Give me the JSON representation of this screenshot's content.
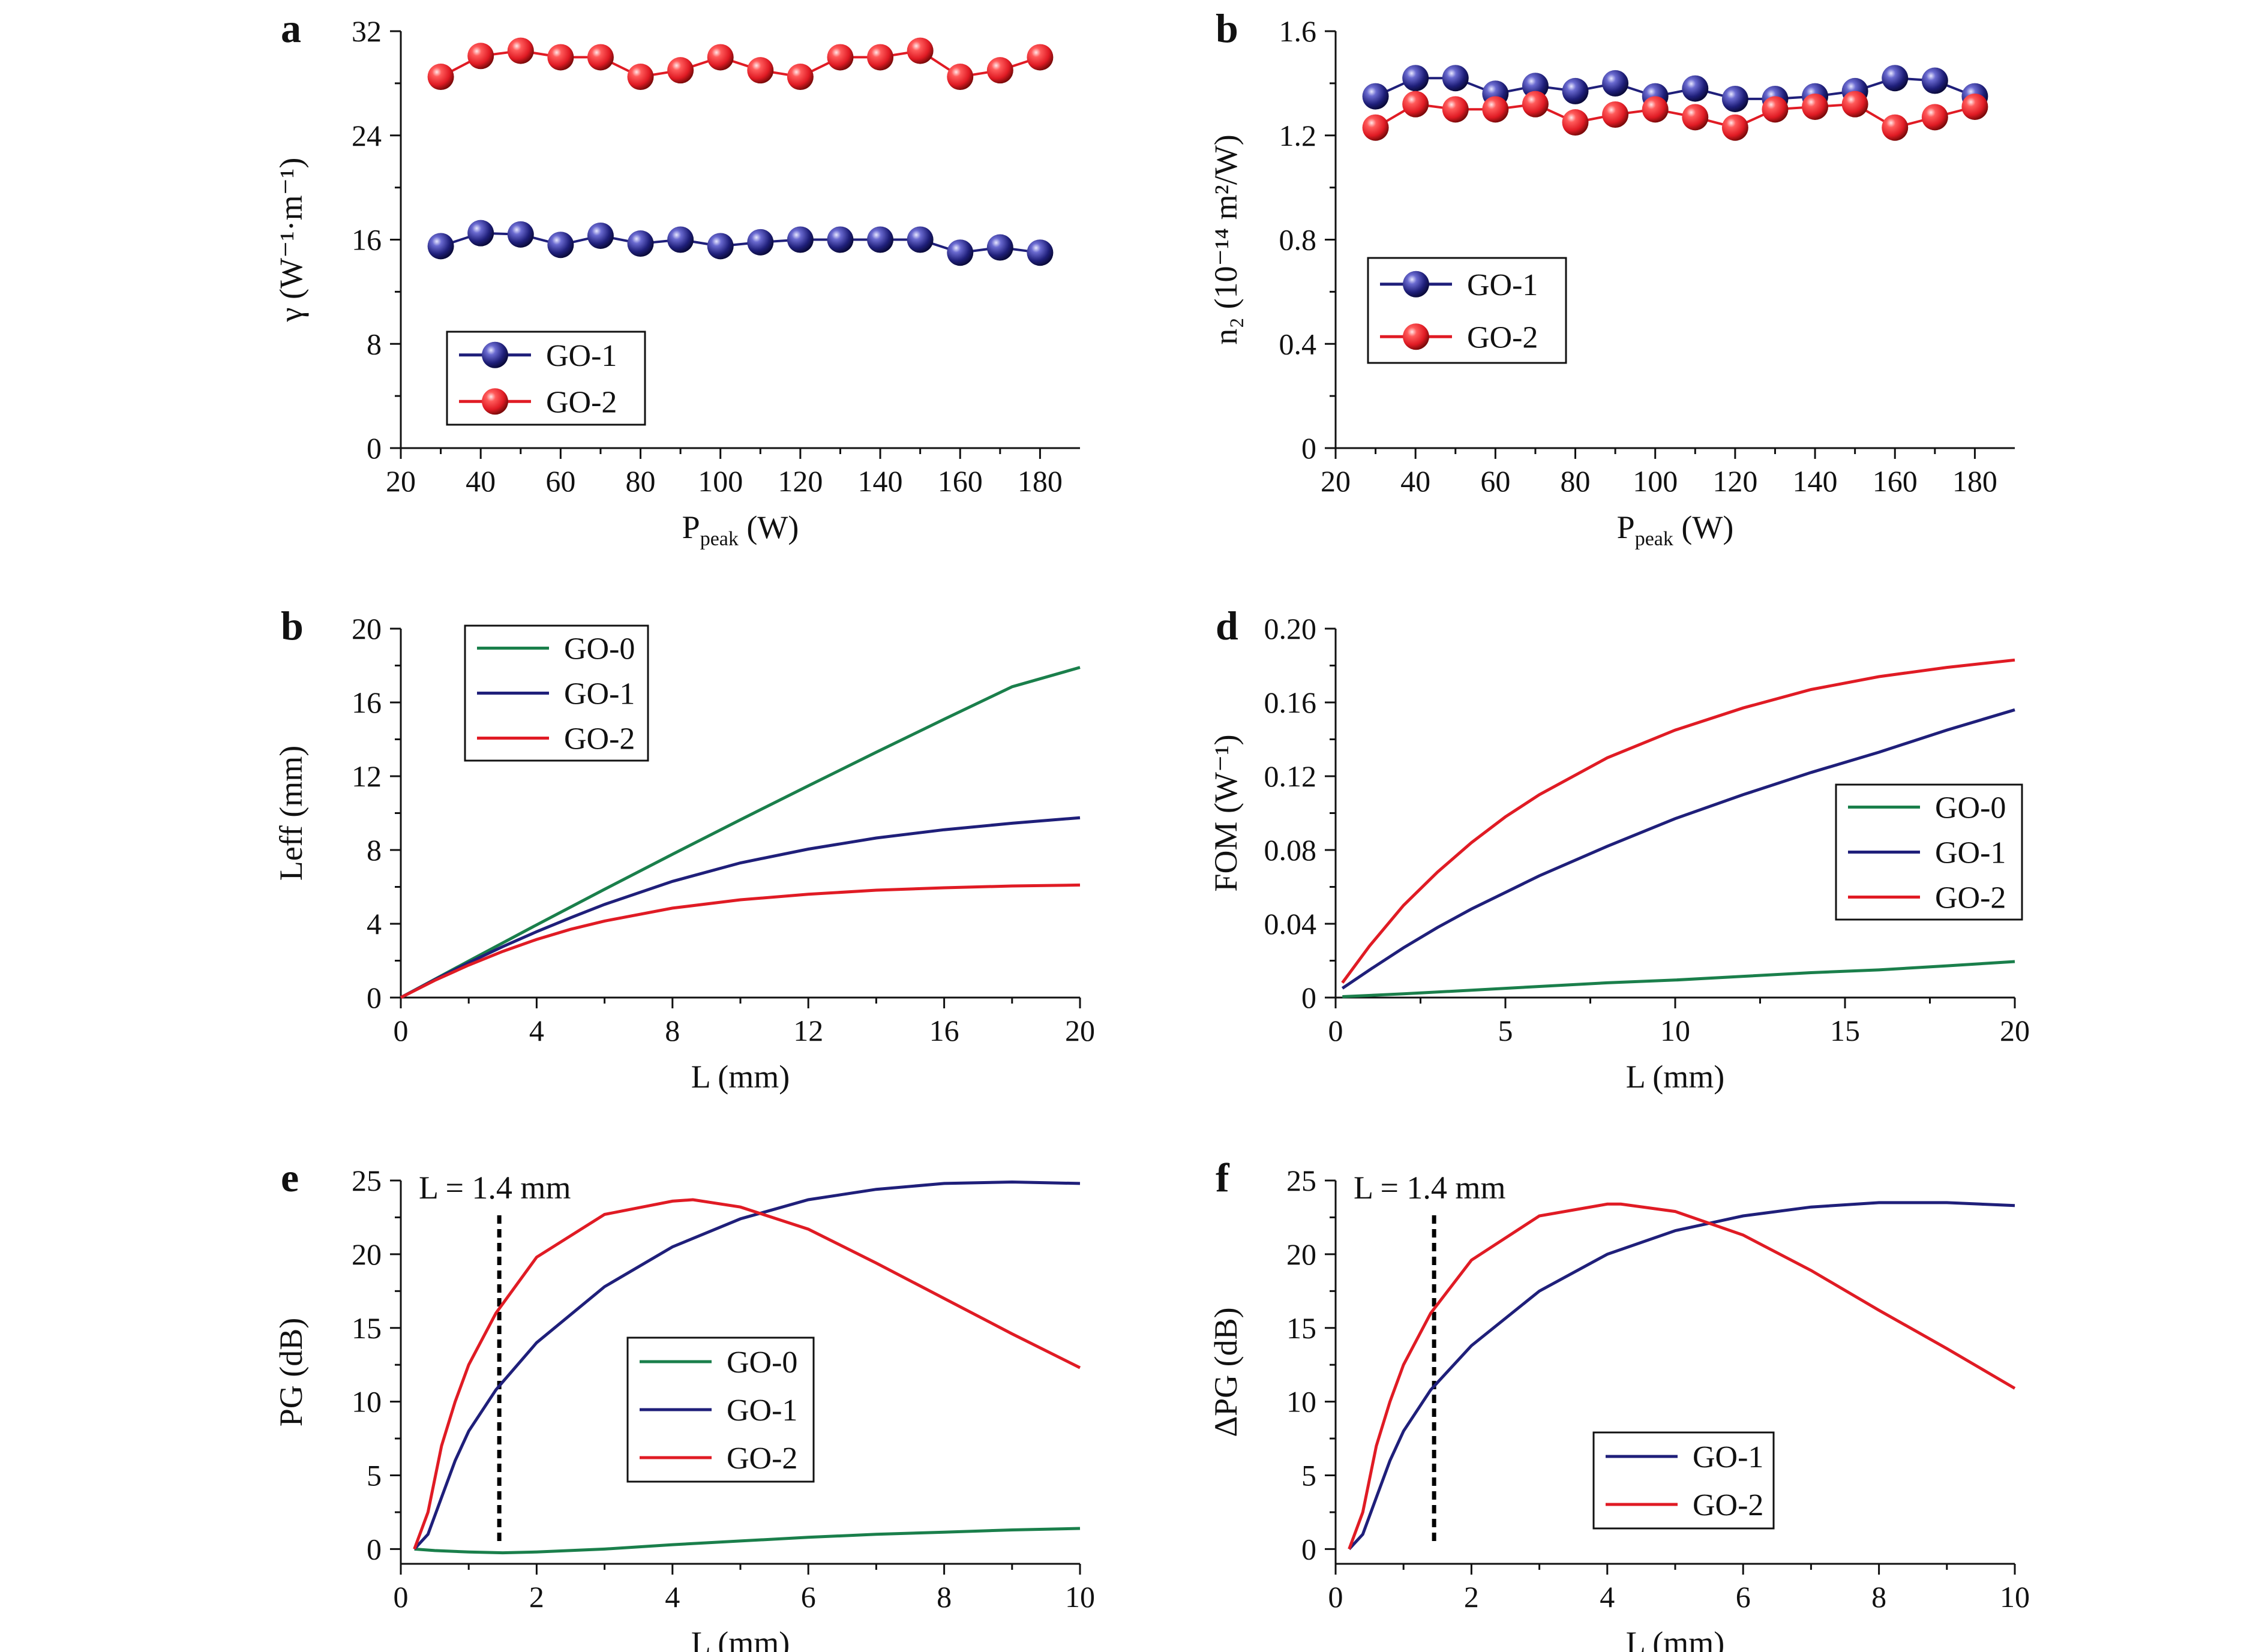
{
  "figure": {
    "colors": {
      "GO-0": "#1a7f4b",
      "GO-1": "#1f1f7a",
      "GO-2": "#e01b24",
      "axis": "#111111",
      "dashed": "#000000"
    }
  },
  "chart_data": [
    {
      "panel_label": "a",
      "type": "scatter",
      "x_label": "P",
      "x_label_sub": "peak",
      "x_label_unit": " (W)",
      "y_label": "γ (W⁻¹·m⁻¹)",
      "xlim": [
        20,
        190
      ],
      "ylim": [
        0,
        32
      ],
      "xticks": [
        20,
        40,
        60,
        80,
        100,
        120,
        140,
        160,
        180
      ],
      "yticks": [
        0,
        8,
        16,
        24,
        32
      ],
      "legend_position": "bottom-left",
      "series": [
        {
          "name": "GO-1",
          "x": [
            30,
            40,
            50,
            60,
            70,
            80,
            90,
            100,
            110,
            120,
            130,
            140,
            150,
            160,
            170,
            180
          ],
          "y": [
            15.5,
            16.5,
            16.4,
            15.6,
            16.3,
            15.7,
            16.0,
            15.5,
            15.8,
            16.0,
            16.0,
            16.0,
            16.0,
            15.0,
            15.4,
            15.0
          ]
        },
        {
          "name": "GO-2",
          "x": [
            30,
            40,
            50,
            60,
            70,
            80,
            90,
            100,
            110,
            120,
            130,
            140,
            150,
            160,
            170,
            180
          ],
          "y": [
            28.5,
            30.1,
            30.5,
            30.0,
            30.0,
            28.5,
            29.0,
            30.0,
            29.0,
            28.5,
            30.0,
            30.0,
            30.5,
            28.5,
            29.0,
            30.0
          ]
        }
      ]
    },
    {
      "panel_label": "b",
      "type": "scatter",
      "x_label": "P",
      "x_label_sub": "peak",
      "x_label_unit": " (W)",
      "y_label": "n₂ (10⁻¹⁴ m²/W)",
      "xlim": [
        20,
        190
      ],
      "ylim": [
        0,
        1.6
      ],
      "xticks": [
        20,
        40,
        60,
        80,
        100,
        120,
        140,
        160,
        180
      ],
      "yticks": [
        0,
        0.4,
        0.8,
        1.2,
        1.6
      ],
      "ytick_labels": [
        "0",
        "0.4",
        "0.8",
        "1.2",
        "1.6"
      ],
      "legend_position": "middle-left",
      "series": [
        {
          "name": "GO-1",
          "x": [
            30,
            40,
            50,
            60,
            70,
            80,
            90,
            100,
            110,
            120,
            130,
            140,
            150,
            160,
            170,
            180
          ],
          "y": [
            1.35,
            1.42,
            1.42,
            1.36,
            1.39,
            1.37,
            1.4,
            1.35,
            1.38,
            1.34,
            1.34,
            1.35,
            1.37,
            1.42,
            1.41,
            1.35
          ]
        },
        {
          "name": "GO-2",
          "x": [
            30,
            40,
            50,
            60,
            70,
            80,
            90,
            100,
            110,
            120,
            130,
            140,
            150,
            160,
            170,
            180
          ],
          "y": [
            1.23,
            1.32,
            1.3,
            1.3,
            1.32,
            1.25,
            1.28,
            1.3,
            1.27,
            1.23,
            1.3,
            1.31,
            1.32,
            1.23,
            1.27,
            1.31
          ]
        }
      ]
    },
    {
      "panel_label": "b",
      "type": "line",
      "x_label": "L (mm)",
      "y_label": "Leff (mm)",
      "xlim": [
        0,
        20
      ],
      "ylim": [
        0,
        20
      ],
      "xticks": [
        0,
        4,
        8,
        12,
        16,
        20
      ],
      "yticks": [
        0,
        4,
        8,
        12,
        16,
        20
      ],
      "legend_position": "top-left",
      "series": [
        {
          "name": "GO-0",
          "x": [
            0,
            2,
            4,
            6,
            8,
            10,
            12,
            14,
            16,
            18,
            20
          ],
          "y": [
            0,
            1.98,
            3.94,
            5.87,
            7.77,
            9.64,
            11.48,
            13.3,
            15.09,
            16.85,
            17.9
          ]
        },
        {
          "name": "GO-1",
          "x": [
            0,
            1,
            2,
            3,
            4,
            5,
            6,
            8,
            10,
            12,
            14,
            16,
            18,
            20
          ],
          "y": [
            0,
            0.97,
            1.89,
            2.76,
            3.57,
            4.33,
            5.05,
            6.3,
            7.3,
            8.05,
            8.65,
            9.1,
            9.45,
            9.75
          ]
        },
        {
          "name": "GO-2",
          "x": [
            0,
            1,
            2,
            3,
            4,
            5,
            6,
            8,
            10,
            12,
            14,
            16,
            18,
            20
          ],
          "y": [
            0,
            0.93,
            1.76,
            2.5,
            3.15,
            3.7,
            4.15,
            4.85,
            5.3,
            5.6,
            5.82,
            5.95,
            6.05,
            6.1
          ]
        }
      ]
    },
    {
      "panel_label": "d",
      "type": "line",
      "x_label": "L (mm)",
      "y_label": "FOM (W⁻¹)",
      "xlim": [
        0,
        20
      ],
      "ylim": [
        0,
        0.2
      ],
      "xticks": [
        0,
        5,
        10,
        15,
        20
      ],
      "yticks": [
        0,
        0.04,
        0.08,
        0.12,
        0.16,
        0.2
      ],
      "ytick_labels": [
        "0",
        "0.04",
        "0.08",
        "0.12",
        "0.16",
        "0.20"
      ],
      "legend_position": "middle-right",
      "series": [
        {
          "name": "GO-0",
          "x": [
            0.2,
            2,
            4,
            6,
            8,
            10,
            12,
            14,
            16,
            18,
            20
          ],
          "y": [
            0.0005,
            0.002,
            0.004,
            0.006,
            0.008,
            0.0095,
            0.0115,
            0.0135,
            0.015,
            0.0172,
            0.0195
          ]
        },
        {
          "name": "GO-1",
          "x": [
            0.2,
            1,
            2,
            3,
            4,
            5,
            6,
            8,
            10,
            12,
            14,
            16,
            18,
            20
          ],
          "y": [
            0.005,
            0.015,
            0.027,
            0.038,
            0.048,
            0.057,
            0.066,
            0.082,
            0.097,
            0.11,
            0.122,
            0.133,
            0.145,
            0.156
          ]
        },
        {
          "name": "GO-2",
          "x": [
            0.2,
            1,
            2,
            3,
            4,
            5,
            6,
            8,
            10,
            12,
            14,
            16,
            18,
            20
          ],
          "y": [
            0.008,
            0.028,
            0.05,
            0.068,
            0.084,
            0.098,
            0.11,
            0.13,
            0.145,
            0.157,
            0.167,
            0.174,
            0.179,
            0.183
          ]
        }
      ]
    },
    {
      "panel_label": "e",
      "type": "line",
      "x_label": "L (mm)",
      "y_label": "PG (dB)",
      "xlim": [
        0,
        10
      ],
      "ylim": [
        -1,
        25
      ],
      "xticks": [
        0,
        2,
        4,
        6,
        8,
        10
      ],
      "yticks": [
        0,
        5,
        10,
        15,
        20,
        25
      ],
      "legend_position": "center",
      "annotation": {
        "text": "L = 1.4 mm",
        "x": 1.45
      },
      "series": [
        {
          "name": "GO-0",
          "x": [
            0.2,
            0.5,
            1,
            1.5,
            2,
            3,
            4,
            5,
            6,
            7,
            8,
            9,
            10
          ],
          "y": [
            0,
            -0.1,
            -0.2,
            -0.25,
            -0.2,
            0,
            0.3,
            0.55,
            0.8,
            1.0,
            1.15,
            1.3,
            1.4
          ]
        },
        {
          "name": "GO-1",
          "x": [
            0.2,
            0.4,
            0.6,
            0.8,
            1.0,
            1.4,
            2,
            3,
            4,
            5,
            6,
            7,
            8,
            9,
            10
          ],
          "y": [
            0,
            1.0,
            3.5,
            6.0,
            8.0,
            10.8,
            14.0,
            17.8,
            20.5,
            22.4,
            23.7,
            24.4,
            24.8,
            24.9,
            24.8
          ]
        },
        {
          "name": "GO-2",
          "x": [
            0.2,
            0.4,
            0.6,
            0.8,
            1.0,
            1.4,
            2,
            3,
            4,
            4.3,
            5,
            6,
            7,
            8,
            9,
            10
          ],
          "y": [
            0,
            2.5,
            7.0,
            10.0,
            12.5,
            16.0,
            19.8,
            22.7,
            23.6,
            23.7,
            23.2,
            21.7,
            19.4,
            17.0,
            14.6,
            12.3
          ]
        }
      ]
    },
    {
      "panel_label": "f",
      "type": "line",
      "x_label": "L (mm)",
      "y_label": "ΔPG (dB)",
      "xlim": [
        0,
        10
      ],
      "ylim": [
        -1,
        25
      ],
      "xticks": [
        0,
        2,
        4,
        6,
        8,
        10
      ],
      "yticks": [
        0,
        5,
        10,
        15,
        20,
        25
      ],
      "legend_position": "bottom-center",
      "annotation": {
        "text": "L = 1.4 mm",
        "x": 1.45
      },
      "series": [
        {
          "name": "GO-1",
          "x": [
            0.2,
            0.4,
            0.6,
            0.8,
            1.0,
            1.4,
            2,
            3,
            4,
            5,
            6,
            7,
            8,
            9,
            10
          ],
          "y": [
            0,
            1.0,
            3.5,
            6.0,
            8.0,
            10.8,
            13.8,
            17.5,
            20.0,
            21.6,
            22.6,
            23.2,
            23.5,
            23.5,
            23.3
          ]
        },
        {
          "name": "GO-2",
          "x": [
            0.2,
            0.4,
            0.6,
            0.8,
            1.0,
            1.4,
            2,
            3,
            4,
            4.2,
            5,
            6,
            7,
            8,
            9,
            10
          ],
          "y": [
            0,
            2.5,
            7.0,
            10.0,
            12.5,
            16.0,
            19.6,
            22.6,
            23.4,
            23.4,
            22.9,
            21.3,
            18.9,
            16.2,
            13.6,
            10.9
          ]
        }
      ]
    }
  ]
}
